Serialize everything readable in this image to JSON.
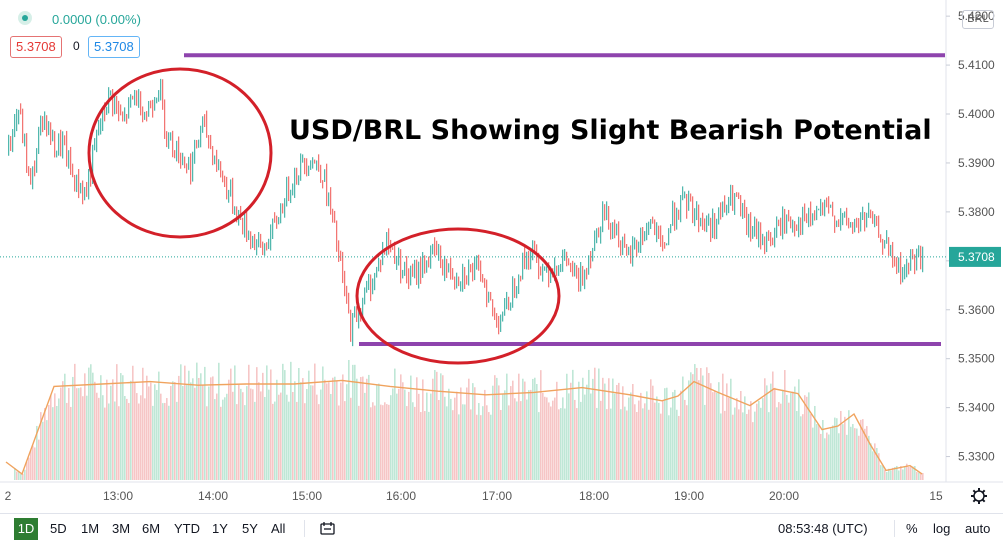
{
  "header": {
    "change": "0.0000 (0.00%)",
    "bid": "5.3708",
    "spread": "0",
    "ask": "5.3708",
    "currency": "BRL"
  },
  "chart_data": {
    "type": "candlestick",
    "title": "USD/BRL Showing Slight Bearish Potential",
    "y_axis": {
      "range": [
        5.3248,
        5.4233
      ],
      "ticks": [
        "5.4200",
        "5.4100",
        "5.4000",
        "5.3900",
        "5.3800",
        "5.3700",
        "5.3600",
        "5.3500",
        "5.3400",
        "5.3300"
      ]
    },
    "x_axis": {
      "labels": [
        "2",
        "13:00",
        "14:00",
        "15:00",
        "16:00",
        "17:00",
        "18:00",
        "19:00",
        "20:00",
        "15"
      ]
    },
    "last_price": {
      "value": 5.3708,
      "label": "5.3708",
      "color": "#26a69a"
    },
    "price_path": [
      [
        0,
        5.392
      ],
      [
        3,
        5.401
      ],
      [
        6,
        5.385
      ],
      [
        9,
        5.4
      ],
      [
        12,
        5.393
      ],
      [
        14,
        5.394
      ],
      [
        17,
        5.386
      ],
      [
        20,
        5.384
      ],
      [
        23,
        5.397
      ],
      [
        26,
        5.404
      ],
      [
        29,
        5.398
      ],
      [
        32,
        5.404
      ],
      [
        35,
        5.4
      ],
      [
        38,
        5.406
      ],
      [
        40,
        5.396
      ],
      [
        43,
        5.392
      ],
      [
        46,
        5.389
      ],
      [
        49,
        5.398
      ],
      [
        52,
        5.391
      ],
      [
        55,
        5.385
      ],
      [
        58,
        5.379
      ],
      [
        61,
        5.375
      ],
      [
        64,
        5.372
      ],
      [
        67,
        5.377
      ],
      [
        70,
        5.384
      ],
      [
        73,
        5.389
      ],
      [
        76,
        5.391
      ],
      [
        79,
        5.388
      ],
      [
        82,
        5.376
      ],
      [
        84,
        5.366
      ],
      [
        86,
        5.356
      ],
      [
        89,
        5.362
      ],
      [
        92,
        5.367
      ],
      [
        95,
        5.374
      ],
      [
        98,
        5.37
      ],
      [
        101,
        5.366
      ],
      [
        104,
        5.369
      ],
      [
        107,
        5.372
      ],
      [
        110,
        5.368
      ],
      [
        113,
        5.367
      ],
      [
        116,
        5.368
      ],
      [
        119,
        5.367
      ],
      [
        122,
        5.358
      ],
      [
        125,
        5.36
      ],
      [
        128,
        5.368
      ],
      [
        131,
        5.372
      ],
      [
        134,
        5.368
      ],
      [
        137,
        5.369
      ],
      [
        140,
        5.37
      ],
      [
        143,
        5.365
      ],
      [
        146,
        5.372
      ],
      [
        149,
        5.38
      ],
      [
        152,
        5.377
      ],
      [
        155,
        5.37
      ],
      [
        158,
        5.374
      ],
      [
        161,
        5.378
      ],
      [
        164,
        5.372
      ],
      [
        167,
        5.38
      ],
      [
        170,
        5.382
      ],
      [
        173,
        5.379
      ],
      [
        176,
        5.377
      ],
      [
        179,
        5.38
      ],
      [
        182,
        5.383
      ],
      [
        185,
        5.377
      ],
      [
        188,
        5.375
      ],
      [
        191,
        5.374
      ],
      [
        194,
        5.378
      ],
      [
        197,
        5.378
      ],
      [
        200,
        5.378
      ],
      [
        203,
        5.38
      ],
      [
        206,
        5.38
      ],
      [
        209,
        5.378
      ],
      [
        212,
        5.377
      ],
      [
        215,
        5.379
      ],
      [
        218,
        5.376
      ],
      [
        221,
        5.371
      ],
      [
        224,
        5.367
      ],
      [
        226,
        5.37
      ],
      [
        229,
        5.371
      ]
    ],
    "volume_line": [
      [
        0,
        0.15
      ],
      [
        4,
        0.05
      ],
      [
        12,
        0.78
      ],
      [
        24,
        0.8
      ],
      [
        36,
        0.82
      ],
      [
        48,
        0.79
      ],
      [
        60,
        0.8
      ],
      [
        72,
        0.8
      ],
      [
        84,
        0.83
      ],
      [
        96,
        0.78
      ],
      [
        108,
        0.74
      ],
      [
        120,
        0.71
      ],
      [
        132,
        0.73
      ],
      [
        144,
        0.77
      ],
      [
        156,
        0.71
      ],
      [
        164,
        0.66
      ],
      [
        168,
        0.7
      ],
      [
        172,
        0.82
      ],
      [
        178,
        0.73
      ],
      [
        186,
        0.62
      ],
      [
        192,
        0.76
      ],
      [
        198,
        0.72
      ],
      [
        204,
        0.42
      ],
      [
        208,
        0.45
      ],
      [
        212,
        0.55
      ],
      [
        216,
        0.3
      ],
      [
        220,
        0.08
      ],
      [
        226,
        0.12
      ],
      [
        229,
        0.05
      ]
    ],
    "annotations": {
      "resistance": {
        "value": 5.412,
        "color": "#8e44ad"
      },
      "support": {
        "value": 5.353,
        "color": "#8e44ad"
      },
      "ellipse_color": "#d32029"
    }
  },
  "bottom_bar": {
    "timeframes": [
      "1D",
      "5D",
      "1M",
      "3M",
      "6M",
      "YTD",
      "1Y",
      "5Y",
      "All"
    ],
    "clock": "08:53:48 (UTC)",
    "percent_label": "%",
    "log_label": "log",
    "auto_label": "auto"
  },
  "icons": {
    "status": "status-dot-icon",
    "compare": "compare-range-icon",
    "settings": "gear-icon"
  }
}
